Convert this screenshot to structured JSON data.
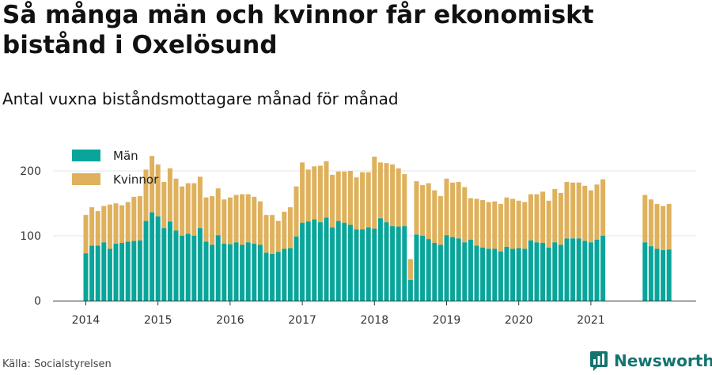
{
  "header": {
    "title": "Så många män och kvinnor får ekonomiskt bistånd i Oxelösund",
    "subtitle": "Antal vuxna biståndsmottagare månad för månad"
  },
  "footer": {
    "source": "Källa: Socialstyrelsen",
    "brand": "Newsworthy"
  },
  "colors": {
    "men": "#0aa59a",
    "women": "#dfb15c",
    "grid": "#e4e4e4",
    "brand": "#14746f"
  },
  "chart_data": {
    "type": "bar",
    "stacked": true,
    "x_start": "2014-01",
    "y_ticks": [
      0,
      100,
      200
    ],
    "x_ticks": [
      "2014",
      "2015",
      "2016",
      "2017",
      "2018",
      "2019",
      "2020",
      "2021"
    ],
    "ylim": [
      0,
      220
    ],
    "grid": true,
    "legend_position": "top-left",
    "legend": [
      "Män",
      "Kvinnor"
    ],
    "series": [
      {
        "name": "Män",
        "values": [
          73,
          85,
          85,
          90,
          80,
          88,
          89,
          91,
          92,
          93,
          123,
          136,
          130,
          112,
          122,
          108,
          100,
          103,
          100,
          112,
          91,
          86,
          101,
          88,
          87,
          90,
          86,
          90,
          88,
          86,
          74,
          72,
          75,
          80,
          81,
          99,
          120,
          122,
          125,
          121,
          128,
          113,
          123,
          120,
          117,
          110,
          110,
          113,
          111,
          127,
          121,
          115,
          114,
          115,
          32,
          102,
          100,
          95,
          89,
          86,
          101,
          98,
          96,
          90,
          94,
          85,
          82,
          80,
          80,
          76,
          83,
          80,
          81,
          80,
          93,
          90,
          89,
          82,
          90,
          86,
          96,
          96,
          96,
          92,
          90,
          94,
          100,
          null,
          null,
          null,
          null,
          null,
          null,
          90,
          84,
          80,
          78,
          79
        ]
      },
      {
        "name": "Kvinnor",
        "values": [
          59,
          59,
          53,
          56,
          68,
          62,
          58,
          61,
          68,
          68,
          79,
          87,
          80,
          71,
          82,
          80,
          76,
          78,
          81,
          79,
          68,
          75,
          72,
          68,
          72,
          73,
          78,
          74,
          72,
          67,
          58,
          60,
          48,
          57,
          63,
          77,
          93,
          80,
          82,
          87,
          87,
          81,
          76,
          79,
          83,
          80,
          88,
          85,
          111,
          86,
          91,
          95,
          90,
          80,
          32,
          82,
          78,
          86,
          81,
          75,
          87,
          84,
          87,
          85,
          64,
          72,
          73,
          72,
          73,
          73,
          76,
          77,
          73,
          72,
          71,
          74,
          79,
          72,
          82,
          80,
          87,
          86,
          86,
          85,
          80,
          85,
          87,
          null,
          null,
          null,
          null,
          null,
          null,
          73,
          72,
          69,
          68,
          70
        ]
      }
    ]
  }
}
